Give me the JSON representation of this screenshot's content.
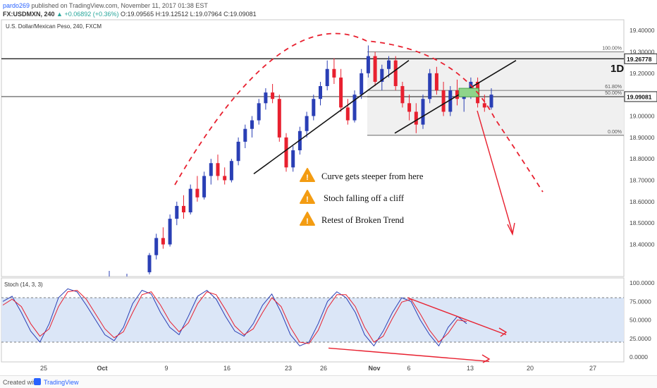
{
  "header": {
    "user": "pardo269",
    "published_text": " published on TradingView.com, November 11, 2017 01:38 EST",
    "symbol": "FX:USDMXN, 240",
    "change": "▲ +0.06892 (+0.36%)",
    "ohlc": "O:19.09565 H:19.12512 L:19.07964 C:19.09081"
  },
  "footer": {
    "created_with": "Created with",
    "brand": "TradingView"
  },
  "colors": {
    "bull": "#2a3fb5",
    "bear": "#e8202f",
    "accent": "#2962ff",
    "arc": "#e8202f",
    "warn": "#f39c12"
  },
  "chart_data": [
    {
      "type": "candlestick",
      "title": "U.S. Dollar/Mexican Peso, 240, FXCM",
      "timeframe_label": "1D",
      "ylim": [
        18.25,
        19.45
      ],
      "y_ticks": [
        "19.40000",
        "19.30000",
        "19.20000",
        "19.10000",
        "19.00000",
        "18.90000",
        "18.80000",
        "18.70000",
        "18.60000",
        "18.50000",
        "18.40000"
      ],
      "price_labels": [
        {
          "value": 19.26778,
          "label": "19.26778"
        },
        {
          "value": 19.09081,
          "label": "19.09081"
        }
      ],
      "fib_levels": [
        {
          "label": "100.00%",
          "value": 19.3
        },
        {
          "label": "61.80%",
          "value": 19.12
        },
        {
          "label": "50.00%",
          "value": 19.09
        },
        {
          "label": "0.00%",
          "value": 18.91
        }
      ],
      "annotations": [
        "Curve gets steeper from here",
        "Stoch falling off a cliff",
        "Retest of Broken Trend"
      ],
      "x_labels": [
        "25",
        "Oct",
        "9",
        "16",
        "23",
        "26",
        "Nov",
        "6",
        "13",
        "20",
        "27"
      ],
      "candles_ohlc": [
        [
          18.27,
          18.36,
          18.26,
          18.35
        ],
        [
          18.35,
          18.45,
          18.33,
          18.43
        ],
        [
          18.43,
          18.48,
          18.38,
          18.4
        ],
        [
          18.4,
          18.54,
          18.39,
          18.52
        ],
        [
          18.52,
          18.6,
          18.49,
          18.58
        ],
        [
          18.58,
          18.63,
          18.52,
          18.55
        ],
        [
          18.55,
          18.68,
          18.54,
          18.66
        ],
        [
          18.66,
          18.72,
          18.6,
          18.62
        ],
        [
          18.62,
          18.74,
          18.61,
          18.72
        ],
        [
          18.72,
          18.8,
          18.68,
          18.78
        ],
        [
          18.78,
          18.82,
          18.7,
          18.72
        ],
        [
          18.72,
          18.76,
          18.68,
          18.7
        ],
        [
          18.7,
          18.8,
          18.69,
          18.79
        ],
        [
          18.79,
          18.9,
          18.77,
          18.88
        ],
        [
          18.88,
          18.96,
          18.85,
          18.94
        ],
        [
          18.94,
          19.0,
          18.9,
          18.98
        ],
        [
          18.98,
          19.08,
          18.96,
          19.06
        ],
        [
          19.06,
          19.13,
          19.03,
          19.11
        ],
        [
          19.11,
          19.15,
          19.06,
          19.08
        ],
        [
          19.08,
          19.1,
          18.88,
          18.9
        ],
        [
          18.9,
          18.92,
          18.74,
          18.76
        ],
        [
          18.76,
          18.86,
          18.74,
          18.84
        ],
        [
          18.84,
          18.95,
          18.82,
          18.93
        ],
        [
          18.93,
          19.02,
          18.9,
          19.0
        ],
        [
          19.0,
          19.1,
          18.98,
          19.08
        ],
        [
          19.08,
          19.16,
          19.05,
          19.14
        ],
        [
          19.14,
          19.26,
          19.12,
          19.22
        ],
        [
          19.22,
          19.27,
          19.15,
          19.18
        ],
        [
          19.18,
          19.22,
          19.02,
          19.04
        ],
        [
          19.04,
          19.08,
          18.96,
          18.98
        ],
        [
          18.98,
          19.12,
          18.97,
          19.1
        ],
        [
          19.1,
          19.22,
          19.08,
          19.2
        ],
        [
          19.2,
          19.33,
          19.18,
          19.28
        ],
        [
          19.28,
          19.3,
          19.14,
          19.16
        ],
        [
          19.16,
          19.24,
          19.12,
          19.22
        ],
        [
          19.22,
          19.28,
          19.18,
          19.26
        ],
        [
          19.26,
          19.28,
          19.12,
          19.14
        ],
        [
          19.14,
          19.16,
          19.04,
          19.06
        ],
        [
          19.06,
          19.1,
          18.98,
          19.02
        ],
        [
          19.02,
          19.06,
          18.92,
          18.96
        ],
        [
          18.96,
          19.1,
          18.94,
          19.08
        ],
        [
          19.08,
          19.22,
          19.06,
          19.2
        ],
        [
          19.2,
          19.23,
          19.1,
          19.12
        ],
        [
          19.12,
          19.16,
          19.0,
          19.02
        ],
        [
          19.02,
          19.14,
          19.0,
          19.12
        ],
        [
          19.12,
          19.17,
          19.05,
          19.08
        ],
        [
          19.08,
          19.12,
          19.02,
          19.1
        ],
        [
          19.1,
          19.18,
          19.08,
          19.16
        ],
        [
          19.16,
          19.18,
          19.04,
          19.06
        ],
        [
          19.06,
          19.1,
          19.02,
          19.04
        ],
        [
          19.04,
          19.13,
          19.03,
          19.1
        ]
      ]
    },
    {
      "type": "line",
      "title": "Stoch (14, 3, 3)",
      "ylim": [
        0,
        100
      ],
      "y_ticks": [
        "100.0000",
        "75.0000",
        "50.0000",
        "25.0000",
        "0.0000"
      ],
      "band": [
        20,
        80
      ],
      "series": [
        {
          "values": [
            75,
            82,
            60,
            35,
            20,
            45,
            80,
            92,
            88,
            70,
            50,
            30,
            22,
            40,
            72,
            90,
            85,
            60,
            40,
            30,
            55,
            82,
            90,
            78,
            55,
            35,
            28,
            45,
            70,
            85,
            60,
            30,
            15,
            20,
            45,
            75,
            88,
            80,
            60,
            30,
            15,
            35,
            60,
            80,
            75,
            50,
            30,
            15,
            40,
            55,
            45
          ]
        },
        {
          "values": [
            70,
            78,
            68,
            45,
            28,
            38,
            68,
            88,
            90,
            78,
            58,
            38,
            26,
            34,
            60,
            84,
            88,
            70,
            48,
            34,
            46,
            72,
            88,
            84,
            64,
            42,
            30,
            38,
            60,
            80,
            68,
            40,
            20,
            18,
            36,
            66,
            84,
            84,
            68,
            40,
            20,
            28,
            52,
            74,
            78,
            58,
            36,
            20,
            32,
            50,
            48
          ]
        }
      ]
    }
  ]
}
